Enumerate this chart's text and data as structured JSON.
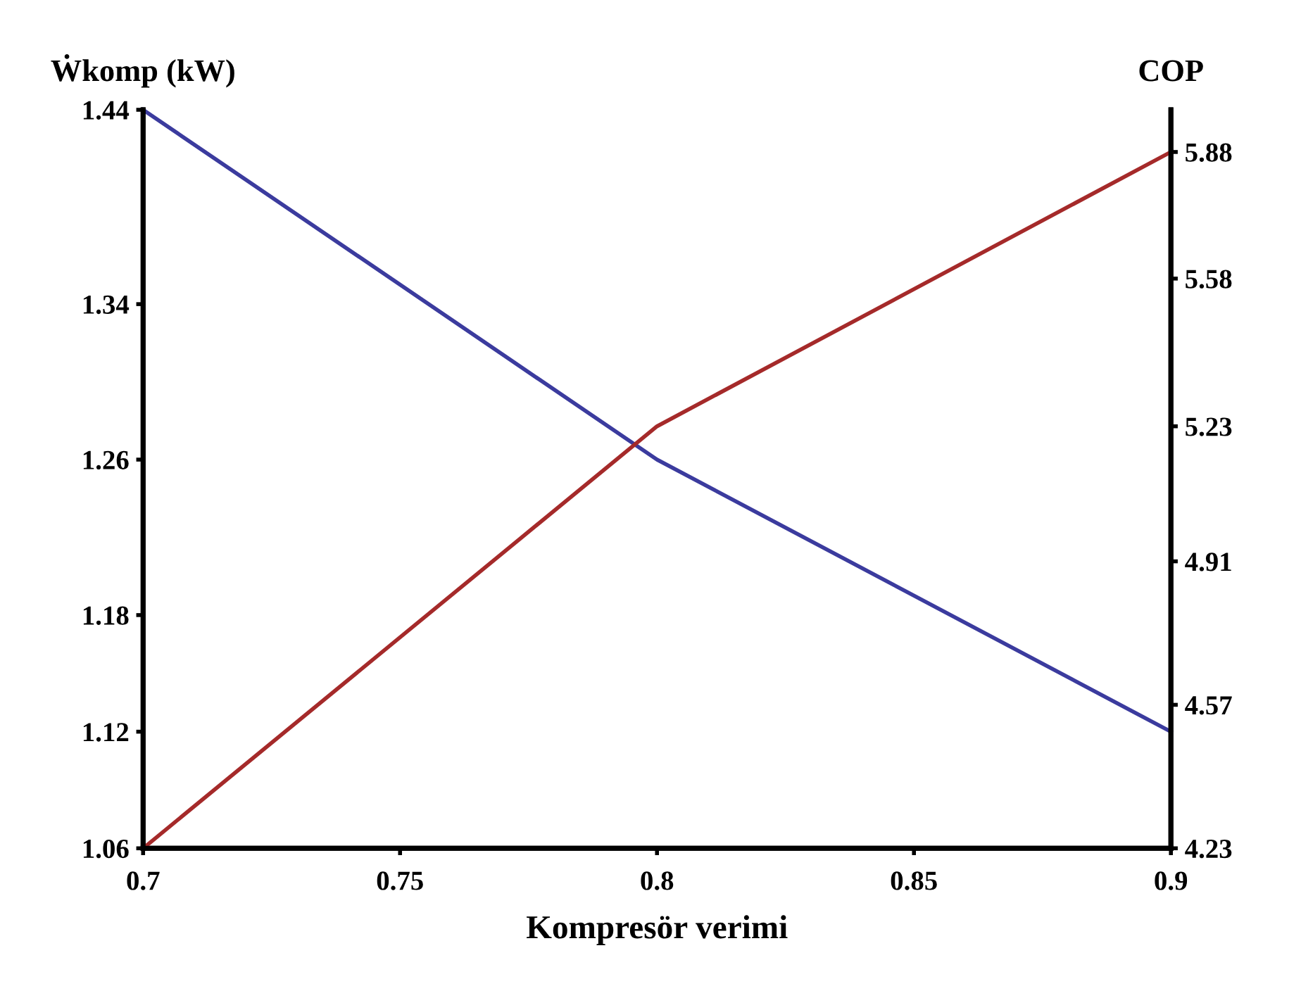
{
  "chart_data": {
    "type": "line",
    "xlabel": "Kompresör verimi",
    "ylabel": "Ẇkomp (kW)",
    "y2label": "COP",
    "x": [
      0.7,
      0.8,
      0.9
    ],
    "series": [
      {
        "color": "#3b3b9e",
        "values": [
          1.44,
          1.26,
          1.12
        ]
      },
      {
        "color": "#a52a2a",
        "values": [
          4.23,
          5.23,
          5.88
        ],
        "axis": "y2"
      }
    ],
    "xlim": [
      0.7,
      0.9
    ],
    "xticks": [
      0.7,
      0.75,
      0.8,
      0.85,
      0.9
    ],
    "ylim": [
      1.06,
      1.44
    ],
    "yticks": [
      1.06,
      1.12,
      1.18,
      1.26,
      1.34,
      1.44
    ],
    "y2lim": [
      4.23,
      5.98
    ],
    "y2ticks": [
      4.23,
      4.57,
      4.91,
      5.23,
      5.58,
      5.88
    ],
    "grid": false,
    "legend": false,
    "marker": "none",
    "line_style": "solid"
  }
}
